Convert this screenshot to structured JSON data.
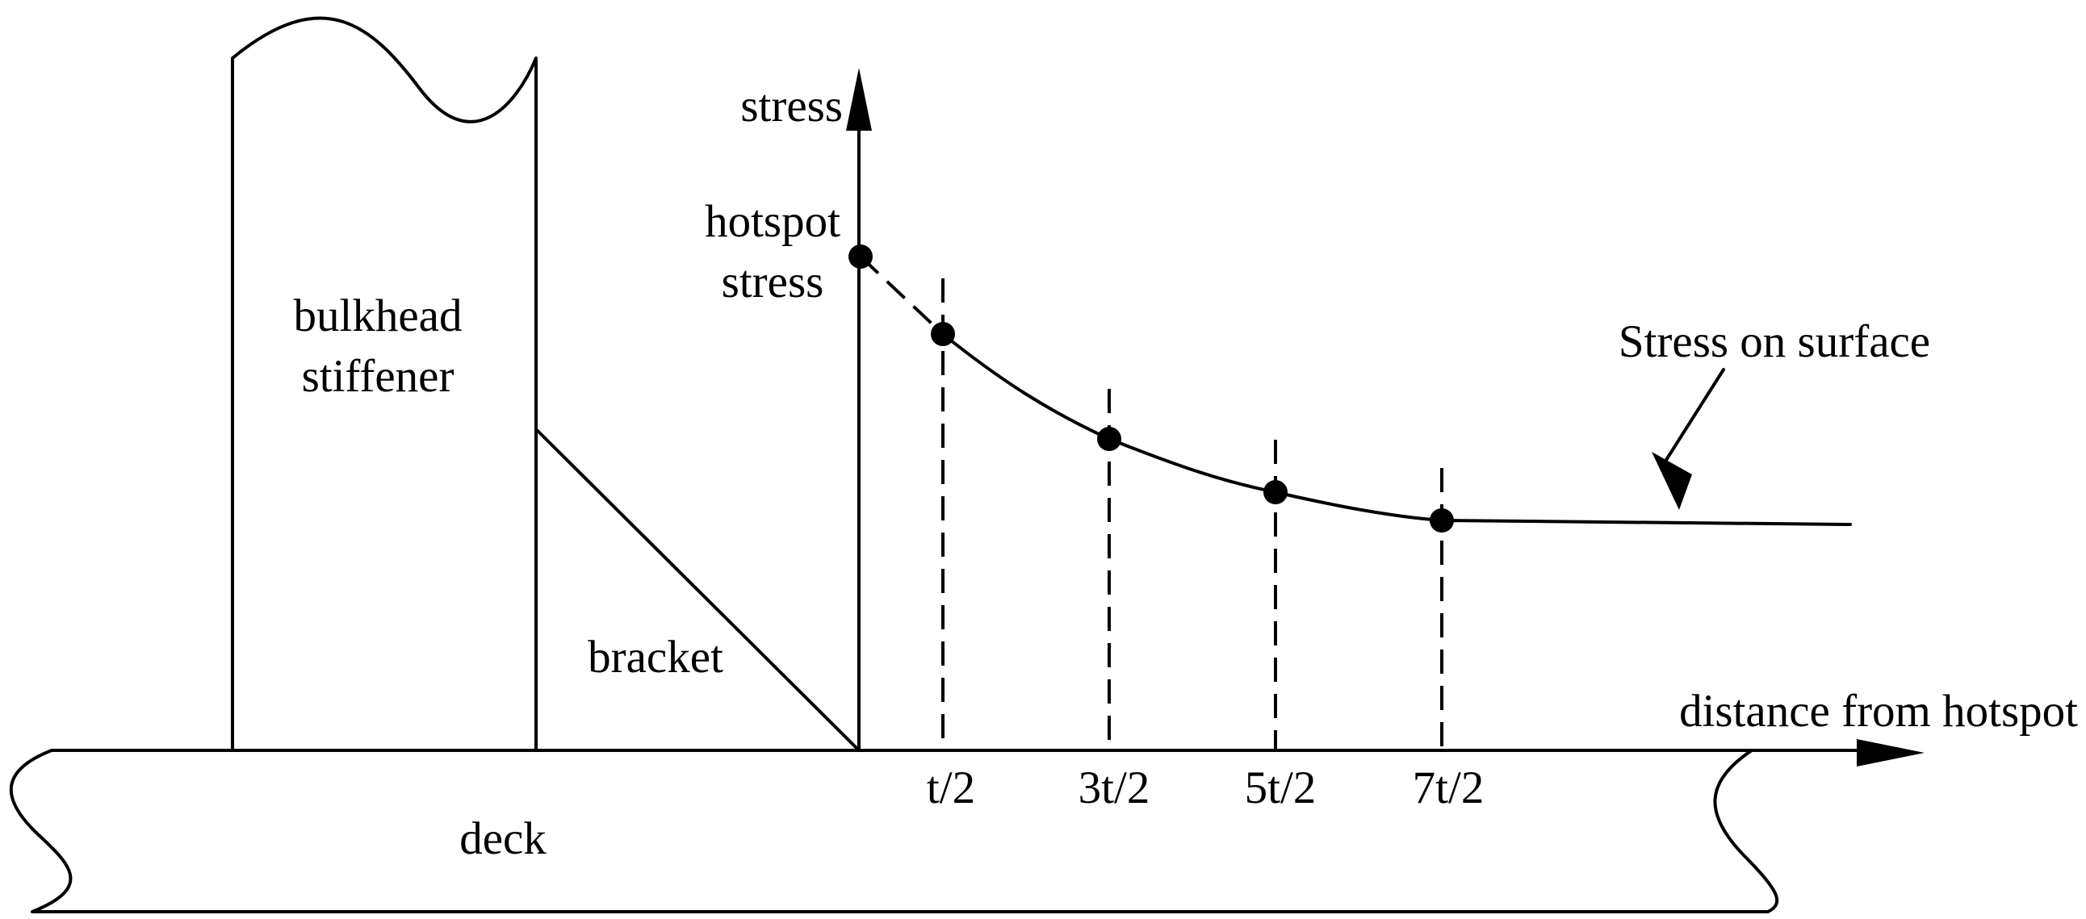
{
  "labels": {
    "stress_axis": "stress",
    "hotspot_line1": "hotspot",
    "hotspot_line2": "stress",
    "bulkhead_line1": "bulkhead",
    "bulkhead_line2": "stiffener",
    "bracket": "bracket",
    "deck": "deck",
    "distance_axis": "distance from hotspot",
    "surface_callout": "Stress on surface"
  },
  "read_points": [
    {
      "label": "t/2"
    },
    {
      "label": "3t/2"
    },
    {
      "label": "5t/2"
    },
    {
      "label": "7t/2"
    }
  ],
  "colors": {
    "stroke": "#000000",
    "background": "#ffffff"
  }
}
